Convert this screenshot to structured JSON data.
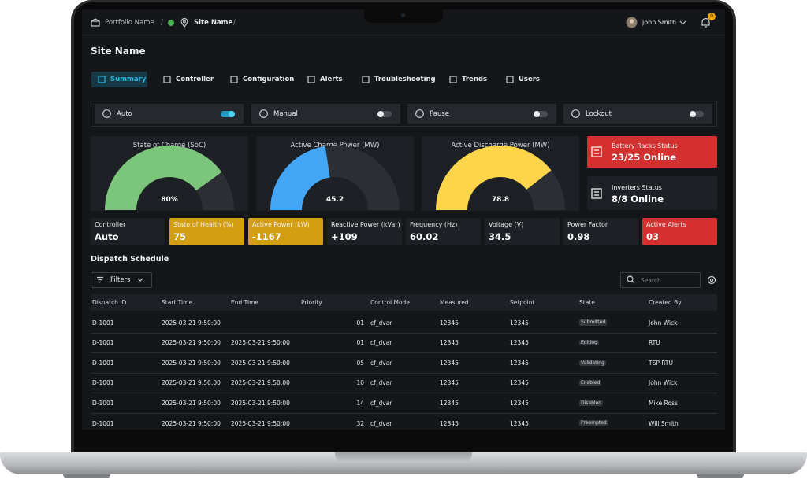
{
  "breadcrumb": {
    "portfolio": "Portfolio Name",
    "separator": "/",
    "site": "Site Name"
  },
  "user": {
    "name": "john Smith",
    "notification_count": "0"
  },
  "page_title": "Site Name",
  "tabs": [
    "Summary",
    "Controller",
    "Configuration",
    "Alerts",
    "Troubleshooting",
    "Trends",
    "Users"
  ],
  "active_tab": 0,
  "modes": [
    {
      "label": "Auto",
      "on": true
    },
    {
      "label": "Manual",
      "on": false
    },
    {
      "label": "Pause",
      "on": false
    },
    {
      "label": "Lockout",
      "on": false
    }
  ],
  "gauges": [
    {
      "title": "State of Charge (SoC)",
      "value": 80,
      "value_label": "80%",
      "ylim": [
        0,
        100
      ],
      "color": "#7cc67c"
    },
    {
      "title": "Active Charge Power (MW)",
      "value": 45.2,
      "ylim": [
        0,
        100
      ],
      "color": "#42a5f5"
    },
    {
      "title": "Active Discharge Power (MW)",
      "value": 78.8,
      "ylim": [
        0,
        100
      ],
      "color": "#fdd54a"
    }
  ],
  "status_cards": [
    {
      "title": "Battery Racks Status",
      "value": "23/25 Online",
      "color": "#d3302f"
    },
    {
      "title": "Inverters Status",
      "value": "8/8 Online",
      "color": "#1d2024"
    }
  ],
  "kpis": [
    {
      "label": "Controller",
      "value": "Auto",
      "color": "#1d2024"
    },
    {
      "label": "State of Health (%)",
      "value": "75",
      "color": "#d39e12"
    },
    {
      "label": "Active Power (kW)",
      "value": "-1167",
      "color": "#d39e12"
    },
    {
      "label": "Reactive Power (kVar)",
      "value": "+109",
      "color": "#1d2024"
    },
    {
      "label": "Frequency (Hz)",
      "value": "60.02",
      "color": "#1d2024"
    },
    {
      "label": "Voltage (V)",
      "value": "34.5",
      "color": "#1d2024"
    },
    {
      "label": "Power Factor",
      "value": "0.98",
      "color": "#1d2024"
    },
    {
      "label": "Active Alerts",
      "value": "03",
      "color": "#d3302f"
    }
  ],
  "dispatch": {
    "title": "Dispatch Schedule",
    "filters": "Filters",
    "search_placeholder": "Search",
    "columns": [
      "Dispatch ID",
      "Start Time",
      "End Time",
      "Priority",
      "Control Mode",
      "Measured",
      "Setpoint",
      "State",
      "Created By"
    ],
    "rows": [
      [
        "D-1001",
        "2025-03-21 9:50:00",
        null,
        "01",
        "cf_dvar",
        "12345",
        "12345",
        "Submitted",
        "John Wick"
      ],
      [
        "D-1001",
        "2025-03-21 9:50:00",
        "2025-03-21 9:50:00",
        "01",
        "cf_dvar",
        "12345",
        "12345",
        "Editing",
        "RTU"
      ],
      [
        "D-1001",
        "2025-03-21 9:50:00",
        "2025-03-21 9:50:00",
        "05",
        "cf_dvar",
        "12345",
        "12345",
        "Validating",
        "TSP RTU"
      ],
      [
        "D-1001",
        "2025-03-21 9:50:00",
        "2025-03-21 9:50:00",
        "10",
        "cf_dvar",
        "12345",
        "12345",
        "Enabled",
        "John Wick"
      ],
      [
        "D-1001",
        "2025-03-21 9:50:00",
        "2025-03-21 9:50:00",
        "14",
        "cf_dvar",
        "12345",
        "12345",
        "Disabled",
        "Mike Ross"
      ],
      [
        "D-1001",
        "2025-03-21 9:50:00",
        "2025-03-21 9:50:00",
        "32",
        "cf_dvar",
        "12345",
        "12345",
        "Preempted",
        "Will Smith"
      ]
    ]
  }
}
